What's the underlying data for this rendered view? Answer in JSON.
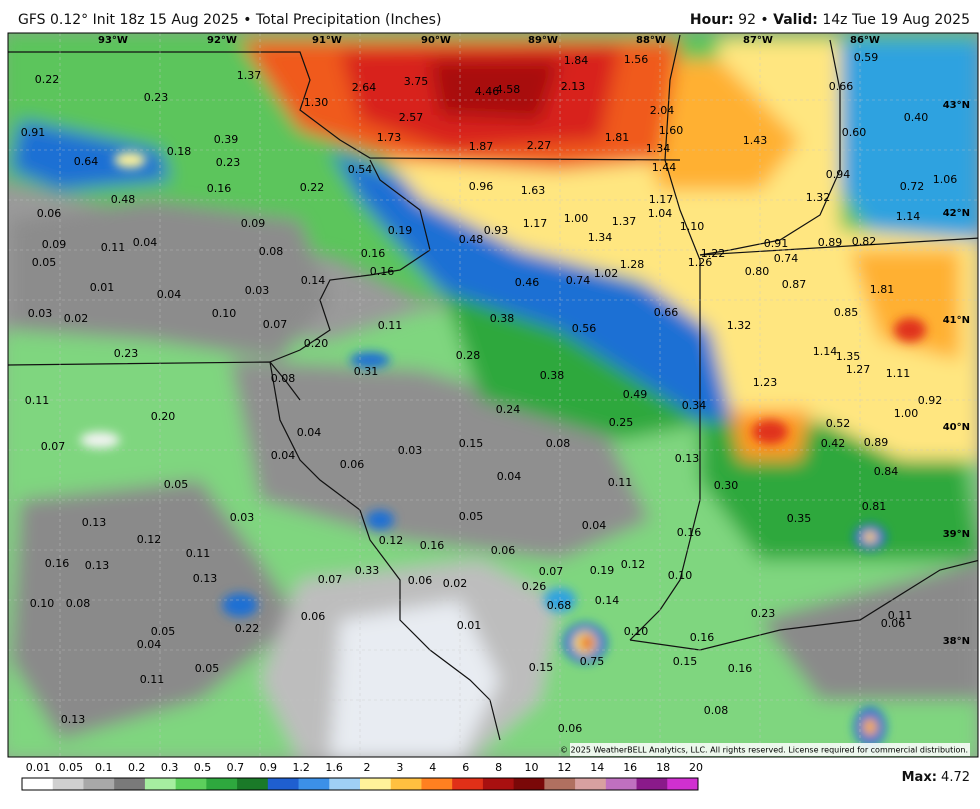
{
  "header": {
    "title": "GFS 0.12° Init 18z 15 Aug 2025 • Total Precipitation (Inches)",
    "hour_label": "Hour:",
    "hour": "92 •",
    "valid_label": "Valid:",
    "valid": "14z Tue 19 Aug 2025"
  },
  "map": {
    "longitudes": [
      "93°W",
      "92°W",
      "91°W",
      "90°W",
      "89°W",
      "88°W",
      "87°W",
      "86°W"
    ],
    "latitudes": [
      "43°N",
      "42°N",
      "41°N",
      "40°N",
      "39°N",
      "38°N"
    ],
    "point_labels": [
      "0.22",
      "1.37",
      "0.23",
      "1.30",
      "2.64",
      "3.75",
      "4.46",
      "4.58",
      "1.84",
      "1.56",
      "2.13",
      "0.59",
      "0.66",
      "0.91",
      "0.39",
      "2.57",
      "1.73",
      "1.87",
      "2.27",
      "1.81",
      "2.04",
      "1.60",
      "1.34",
      "1.43",
      "0.40",
      "0.60",
      "0.64",
      "0.18",
      "0.23",
      "0.54",
      "1.44",
      "0.94",
      "0.72",
      "1.06",
      "0.48",
      "0.16",
      "0.22",
      "0.96",
      "1.63",
      "1.17",
      "1.32",
      "1.14",
      "0.06",
      "0.09",
      "1.00",
      "1.37",
      "1.04",
      "1.17",
      "0.93",
      "1.10",
      "0.19",
      "0.48",
      "1.34",
      "0.09",
      "0.11",
      "0.04",
      "0.08",
      "0.16",
      "1.22",
      "1.26",
      "0.91",
      "0.89",
      "0.82",
      "0.74",
      "0.05",
      "0.16",
      "1.28",
      "1.02",
      "0.80",
      "0.46",
      "0.74",
      "0.87",
      "0.01",
      "0.04",
      "0.03",
      "0.14",
      "1.81",
      "0.03",
      "0.02",
      "0.10",
      "0.07",
      "0.11",
      "0.38",
      "0.66",
      "0.85",
      "1.32",
      "0.56",
      "0.20",
      "0.23",
      "0.28",
      "1.14",
      "1.35",
      "0.31",
      "0.38",
      "1.27",
      "1.11",
      "0.08",
      "1.23",
      "0.11",
      "0.49",
      "0.34",
      "0.92",
      "0.24",
      "0.20",
      "1.00",
      "0.25",
      "0.52",
      "0.04",
      "0.42",
      "0.89",
      "0.07",
      "0.15",
      "0.08",
      "0.03",
      "0.06",
      "0.04",
      "0.13",
      "0.04",
      "0.84",
      "0.05",
      "0.11",
      "0.30",
      "0.81",
      "0.03",
      "0.05",
      "0.13",
      "0.04",
      "0.35",
      "0.12",
      "0.16",
      "0.12",
      "0.16",
      "0.06",
      "0.11",
      "0.16",
      "0.13",
      "0.07",
      "0.19",
      "0.12",
      "0.13",
      "0.33",
      "0.07",
      "0.06",
      "0.02",
      "0.26",
      "0.10",
      "0.10",
      "0.08",
      "0.68",
      "0.14",
      "0.23",
      "0.11",
      "0.06",
      "0.06",
      "0.22",
      "0.05",
      "0.01",
      "0.10",
      "0.04",
      "0.16",
      "0.75",
      "0.15",
      "0.15",
      "0.16",
      "0.05",
      "0.11",
      "0.13",
      "0.08",
      "0.06"
    ]
  },
  "footer": {
    "copyright": "© 2025 WeatherBELL Analytics, LLC. All rights reserved. License required for commercial distribution.",
    "scale_labels": [
      "0.01",
      "0.05",
      "0.1",
      "0.2",
      "0.3",
      "0.5",
      "0.7",
      "0.9",
      "1.2",
      "1.6",
      "2",
      "3",
      "4",
      "6",
      "8",
      "10",
      "12",
      "14",
      "16",
      "18",
      "20"
    ],
    "max_label": "Max:",
    "max_value": "4.72"
  }
}
